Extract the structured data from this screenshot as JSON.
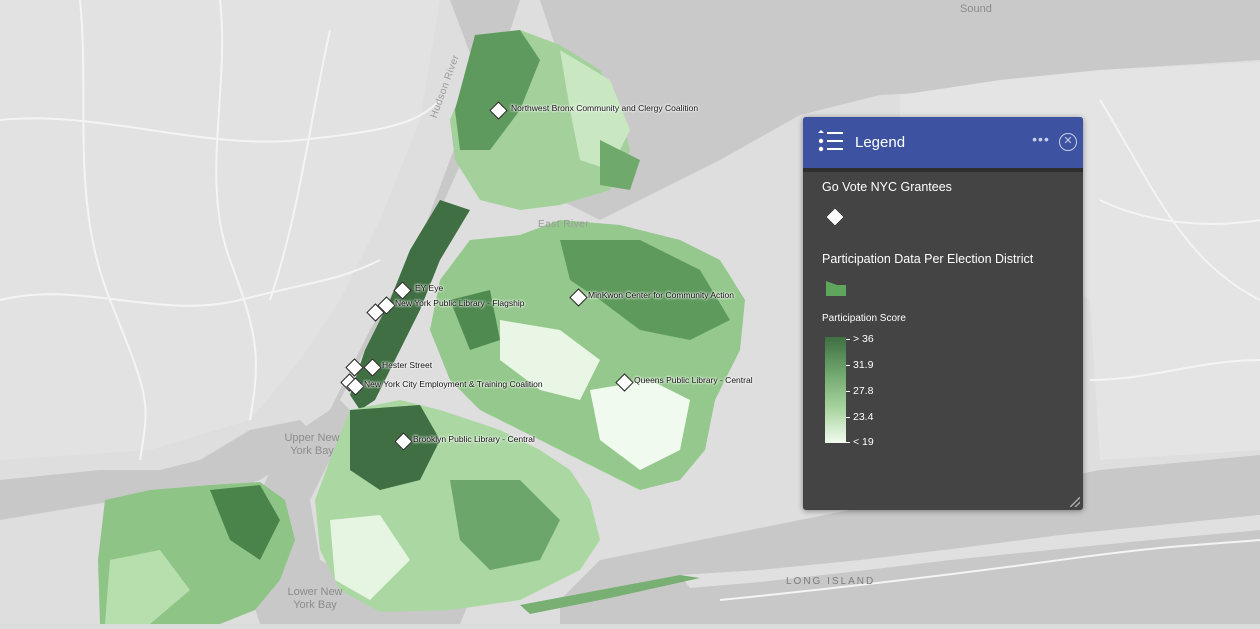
{
  "map": {
    "place_labels": [
      "Sound",
      "Hudson River",
      "East River",
      "Upper New York Bay",
      "Lower New York Bay",
      "LONG ISLAND"
    ],
    "grantees": [
      "Northwest Bronx Community and Clergy Coalition",
      "EY Eye",
      "New York Public Library - Flagship",
      "MinKwon Center for Community Action",
      "Hester Street",
      "New York City Employment & Training Coalition",
      "Queens Public Library - Central",
      "Brooklyn Public Library - Central"
    ],
    "colors": {
      "water": "#c9c9c9",
      "land": "#e2e2e2",
      "choropleth_high": "#3f6f42",
      "choropleth_low": "#f2fbf0"
    }
  },
  "legend": {
    "title": "Legend",
    "menu_icon": "ellipsis-icon",
    "close_icon": "close-circle-icon",
    "layer1_title": "Go Vote NYC Grantees",
    "layer2_title": "Participation Data Per Election District",
    "field_label": "Participation Score",
    "ramp_labels": [
      "> 36",
      "31.9",
      "27.8",
      "23.4",
      "< 19"
    ],
    "colors": {
      "header": "#3d52a0",
      "panel": "#444444"
    }
  }
}
